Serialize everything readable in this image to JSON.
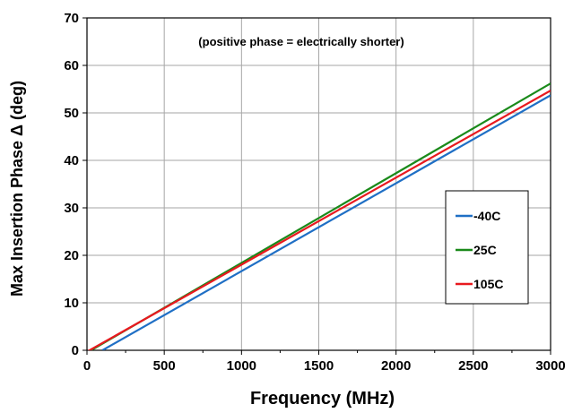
{
  "chart_data": {
    "type": "line",
    "title": "",
    "xlabel": "Frequency (MHz)",
    "ylabel": "Max Insertion Phase Δ (deg)",
    "annotation": "(positive phase = electrically shorter)",
    "xlim": [
      0,
      3000
    ],
    "ylim": [
      0,
      70
    ],
    "xticks": [
      0,
      500,
      1000,
      1500,
      2000,
      2500,
      3000
    ],
    "yticks": [
      0,
      10,
      20,
      30,
      40,
      50,
      60,
      70
    ],
    "grid": true,
    "legend_position": "right",
    "series": [
      {
        "name": "-40C",
        "color": "#1f6fc5",
        "x": [
          100,
          3000
        ],
        "y": [
          0,
          53.7
        ]
      },
      {
        "name": "25C",
        "color": "#1a8a1a",
        "x": [
          0,
          3000
        ],
        "y": [
          -0.5,
          56.2
        ]
      },
      {
        "name": "105C",
        "color": "#e8191f",
        "x": [
          0,
          3000
        ],
        "y": [
          -0.3,
          54.7
        ]
      }
    ]
  }
}
